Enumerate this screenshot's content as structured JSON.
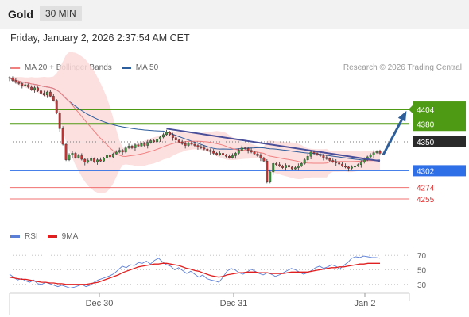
{
  "header": {
    "title": "Gold",
    "timeframe": "30 MIN"
  },
  "timestamp": "Friday, January 2, 2026 2:37:54 AM CET",
  "credit": "Research © 2026 Trading Central",
  "legend_main": [
    {
      "name": "MA 20 + Bollinger Bands",
      "color": "#f08080"
    },
    {
      "name": "MA 50",
      "color": "#2c5d9c"
    }
  ],
  "legend_rsi": [
    {
      "name": "RSI",
      "color": "#5b7fd6"
    },
    {
      "name": "9MA",
      "color": "#e02020"
    }
  ],
  "colors": {
    "up": "#3a9a3a",
    "down": "#d03030",
    "resistance": "#4f9a14",
    "pivot": "#2e6ee6",
    "support": "#f07070",
    "trendline": "#4a4f9a",
    "arrow": "#2f5f9a"
  },
  "chart_data": [
    {
      "type": "candlestick",
      "x_ticks": [
        "Dec 30",
        "Dec 31",
        "Jan 2"
      ],
      "ylim": [
        4230,
        4470
      ],
      "price_series": [
        4456,
        4452,
        4449,
        4447,
        4444,
        4445,
        4441,
        4437,
        4440,
        4435,
        4431,
        4428,
        4433,
        4426,
        4419,
        4398,
        4372,
        4346,
        4320,
        4328,
        4331,
        4324,
        4327,
        4321,
        4316,
        4319,
        4322,
        4317,
        4320,
        4318,
        4323,
        4328,
        4325,
        4330,
        4333,
        4336,
        4333,
        4340,
        4343,
        4340,
        4345,
        4343,
        4347,
        4344,
        4349,
        4352,
        4350,
        4355,
        4358,
        4362,
        4366,
        4362,
        4357,
        4353,
        4350,
        4347,
        4344,
        4348,
        4346,
        4344,
        4342,
        4340,
        4338,
        4336,
        4334,
        4331,
        4329,
        4331,
        4328,
        4326,
        4324,
        4327,
        4331,
        4336,
        4340,
        4339,
        4336,
        4333,
        4330,
        4327,
        4323,
        4318,
        4283,
        4300,
        4314,
        4312,
        4310,
        4307,
        4311,
        4308,
        4305,
        4307,
        4310,
        4314,
        4320,
        4326,
        4333,
        4331,
        4329,
        4327,
        4324,
        4322,
        4319,
        4317,
        4315,
        4313,
        4310,
        4308,
        4306,
        4308,
        4310,
        4312,
        4316,
        4320,
        4325,
        4328,
        4332,
        4334,
        4331
      ],
      "levels": [
        {
          "value": 4404,
          "label": "4404",
          "kind": "resistance"
        },
        {
          "value": 4380,
          "label": "4380",
          "kind": "resistance"
        },
        {
          "value": 4350,
          "label": "4350",
          "kind": "last"
        },
        {
          "value": 4302,
          "label": "4302",
          "kind": "pivot"
        },
        {
          "value": 4274,
          "label": "4274",
          "kind": "support"
        },
        {
          "value": 4255,
          "label": "4255",
          "kind": "support"
        }
      ]
    },
    {
      "type": "line",
      "title": "RSI",
      "ylim": [
        20,
        80
      ],
      "y_ticks": [
        70,
        50,
        30
      ],
      "series": [
        {
          "name": "RSI",
          "values": [
            44,
            40,
            36,
            38,
            35,
            33,
            36,
            31,
            30,
            33,
            31,
            29,
            27,
            29,
            27,
            25,
            26,
            28,
            30,
            27,
            29,
            33,
            36,
            38,
            40,
            42,
            45,
            50,
            55,
            53,
            57,
            56,
            60,
            59,
            62,
            58,
            63,
            66,
            61,
            57,
            55,
            50,
            53,
            49,
            45,
            48,
            44,
            40,
            43,
            38,
            36,
            35,
            33,
            40,
            48,
            52,
            50,
            46,
            44,
            47,
            51,
            48,
            45,
            43,
            46,
            44,
            41,
            43,
            46,
            49,
            52,
            50,
            47,
            44,
            46,
            49,
            53,
            55,
            52,
            54,
            57,
            55,
            51,
            56,
            60,
            66,
            68,
            67,
            69,
            68,
            67,
            67,
            66
          ]
        },
        {
          "name": "9MA",
          "values": [
            40,
            39,
            38,
            37,
            37,
            36,
            35,
            34,
            33,
            33,
            32,
            32,
            31,
            31,
            30,
            30,
            30,
            30,
            30,
            30,
            31,
            32,
            33,
            35,
            37,
            39,
            41,
            43,
            46,
            48,
            50,
            52,
            54,
            55,
            56,
            57,
            58,
            58,
            59,
            59,
            58,
            57,
            56,
            54,
            52,
            51,
            49,
            48,
            46,
            44,
            42,
            41,
            40,
            41,
            43,
            44,
            45,
            46,
            46,
            47,
            47,
            47,
            46,
            46,
            46,
            45,
            45,
            45,
            45,
            46,
            47,
            47,
            47,
            47,
            47,
            48,
            49,
            50,
            51,
            52,
            53,
            53,
            54,
            54,
            55,
            56,
            57,
            58,
            58,
            59,
            59,
            59,
            59
          ]
        }
      ]
    }
  ]
}
